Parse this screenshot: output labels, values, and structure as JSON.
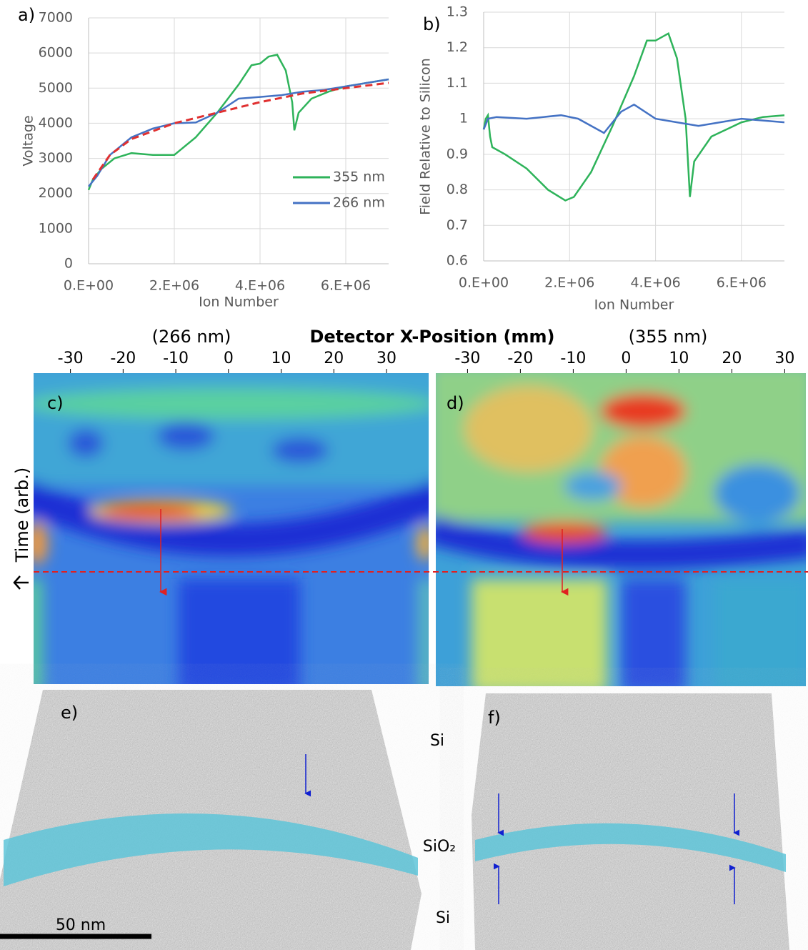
{
  "chart_data": [
    {
      "type": "line",
      "label": "a)",
      "ylabel": "Voltage",
      "xlabel": "Ion Number",
      "xlim": [
        0,
        7000000
      ],
      "ylim": [
        0,
        7000
      ],
      "grid": true,
      "legend": "lower right",
      "xticks": [
        {
          "value": 0,
          "label": "0.E+00"
        },
        {
          "value": 2000000,
          "label": "2.E+06"
        },
        {
          "value": 4000000,
          "label": "4.E+06"
        },
        {
          "value": 6000000,
          "label": "6.E+06"
        }
      ],
      "yticks": [
        0,
        1000,
        2000,
        3000,
        4000,
        5000,
        6000,
        7000
      ],
      "series": [
        {
          "name": "355 nm",
          "color": "#2eb35a",
          "x": [
            0,
            100000,
            300000,
            600000,
            1000000,
            1500000,
            2000000,
            2500000,
            3000000,
            3500000,
            3800000,
            4000000,
            4200000,
            4400000,
            4600000,
            4750000,
            4800000,
            4900000,
            5200000,
            5600000,
            6000000,
            6500000,
            7000000
          ],
          "values": [
            2100,
            2400,
            2700,
            3000,
            3150,
            3100,
            3100,
            3600,
            4300,
            5100,
            5650,
            5700,
            5900,
            5950,
            5500,
            4600,
            3800,
            4300,
            4700,
            4900,
            5050,
            5150,
            5250
          ]
        },
        {
          "name": "266 nm",
          "color": "#4472c4",
          "x": [
            0,
            200000,
            500000,
            1000000,
            1500000,
            2000000,
            2500000,
            3000000,
            3500000,
            4000000,
            4500000,
            5000000,
            5500000,
            6000000,
            6500000,
            7000000
          ],
          "values": [
            2200,
            2500,
            3100,
            3600,
            3850,
            4000,
            4020,
            4300,
            4700,
            4750,
            4800,
            4900,
            4950,
            5050,
            5150,
            5250
          ]
        },
        {
          "color": "#e03030",
          "dashed": true,
          "x": [
            100000,
            500000,
            1000000,
            2000000,
            3000000,
            4000000,
            5000000,
            6000000,
            7000000
          ],
          "values": [
            2400,
            3100,
            3550,
            4000,
            4300,
            4600,
            4850,
            5000,
            5150
          ]
        }
      ]
    },
    {
      "type": "line",
      "label": "b)",
      "ylabel": "Field Relative to Silicon",
      "xlabel": "Ion Number",
      "xlim": [
        0,
        7000000
      ],
      "ylim": [
        0.6,
        1.3
      ],
      "grid": true,
      "xticks": [
        {
          "value": 0,
          "label": "0.E+00"
        },
        {
          "value": 2000000,
          "label": "2.E+06"
        },
        {
          "value": 4000000,
          "label": "4.E+06"
        },
        {
          "value": 6000000,
          "label": "6.E+06"
        }
      ],
      "yticks": [
        0.6,
        0.7,
        0.8,
        0.9,
        1,
        1.1,
        1.2,
        1.3
      ],
      "series": [
        {
          "color": "#2eb35a",
          "x": [
            0,
            50000,
            100000,
            150000,
            200000,
            500000,
            1000000,
            1500000,
            1900000,
            2100000,
            2500000,
            3000000,
            3500000,
            3800000,
            4000000,
            4300000,
            4500000,
            4700000,
            4800000,
            4900000,
            5300000,
            6000000,
            6500000,
            7000000
          ],
          "values": [
            0.97,
            1.0,
            1.01,
            0.95,
            0.92,
            0.9,
            0.86,
            0.8,
            0.77,
            0.78,
            0.85,
            0.98,
            1.12,
            1.22,
            1.22,
            1.24,
            1.17,
            1.0,
            0.78,
            0.88,
            0.95,
            0.99,
            1.005,
            1.01
          ]
        },
        {
          "color": "#4472c4",
          "x": [
            0,
            100000,
            300000,
            1000000,
            1800000,
            2200000,
            2800000,
            3200000,
            3500000,
            4000000,
            4500000,
            5000000,
            5500000,
            6000000,
            7000000
          ],
          "values": [
            0.97,
            1.0,
            1.005,
            1.0,
            1.01,
            1.0,
            0.96,
            1.02,
            1.04,
            1.0,
            0.99,
            0.98,
            0.99,
            1.0,
            0.99
          ]
        }
      ]
    }
  ],
  "heatmaps": {
    "xlabel": "Detector X-Position (mm)",
    "ylabel": "Time (arb.)",
    "panels": [
      {
        "label": "c)",
        "title": "(266 nm)",
        "xlim": [
          -37,
          38
        ],
        "xticks": [
          -30,
          -20,
          -10,
          0,
          10,
          20,
          30
        ]
      },
      {
        "label": "d)",
        "title": "(355 nm)",
        "xlim": [
          -36,
          34
        ],
        "xticks": [
          -30,
          -20,
          -10,
          0,
          10,
          20,
          30
        ]
      }
    ]
  },
  "images": {
    "left_label": "e)",
    "right_label": "f)",
    "scale_bar": "50 nm",
    "layer_top": "Si",
    "layer_mid": "SiO₂",
    "layer_bottom": "Si"
  }
}
